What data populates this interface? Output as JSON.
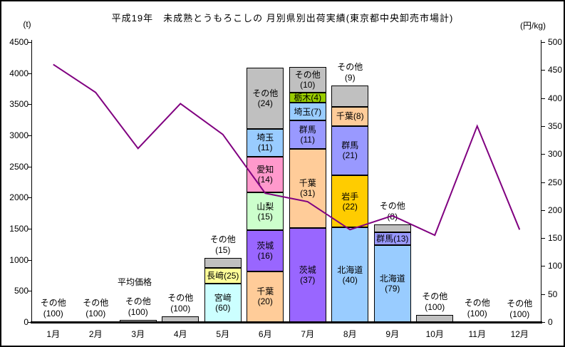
{
  "title": "平成19年　未成熟とうもろこしの 月別県別出荷実績(東京都中央卸売市場計)",
  "colors": {
    "sonota": "#C0C0C0",
    "chiba": "#FFCC99",
    "ibaraki": "#9966FF",
    "yamanashi": "#CCFFCC",
    "aichi": "#FF99CC",
    "saitama": "#99CCFF",
    "gunma": "#9999FF",
    "tochigi": "#99CC00",
    "hokkaido": "#99CCFF",
    "iwate": "#FFCC00",
    "nagasaki": "#FFFF99",
    "miyazaki": "#CCFFFF",
    "price_line": "#800080",
    "axis": "#000000"
  },
  "chart_data": {
    "type": "stacked-bar+line",
    "categories": [
      "1月",
      "2月",
      "3月",
      "4月",
      "5月",
      "6月",
      "7月",
      "8月",
      "9月",
      "10月",
      "11月",
      "12月"
    ],
    "left_axis": {
      "unit": "(t)",
      "min": 0,
      "max": 4500,
      "step": 500,
      "tick_labels": [
        "0",
        "500",
        "1000",
        "1500",
        "2000",
        "2500",
        "3000",
        "3500",
        "4000",
        "4500"
      ]
    },
    "right_axis": {
      "unit": "(円/kg)",
      "min": 0,
      "max": 500,
      "step": 50,
      "tick_labels": [
        "0",
        "50",
        "100",
        "150",
        "200",
        "250",
        "300",
        "350",
        "400",
        "450",
        "500"
      ]
    },
    "months": [
      {
        "total_t": 10,
        "outside": [
          "その他",
          "(100)"
        ],
        "segments": [
          {
            "name": "その他",
            "pct": 100,
            "color": "sonota",
            "label": "none"
          }
        ]
      },
      {
        "total_t": 15,
        "outside": [
          "その他",
          "(100)"
        ],
        "segments": [
          {
            "name": "その他",
            "pct": 100,
            "color": "sonota",
            "label": "none"
          }
        ]
      },
      {
        "total_t": 40,
        "outside": [
          "その他",
          "(100)"
        ],
        "segments": [
          {
            "name": "その他",
            "pct": 100,
            "color": "sonota",
            "label": "none"
          }
        ]
      },
      {
        "total_t": 95,
        "outside": [
          "その他",
          "(100)"
        ],
        "segments": [
          {
            "name": "その他",
            "pct": 100,
            "color": "sonota",
            "label": "none"
          }
        ]
      },
      {
        "total_t": 1030,
        "outside": [
          "その他",
          "(15)"
        ],
        "segments": [
          {
            "name": "宮﨑",
            "pct": 60,
            "color": "miyazaki",
            "label": "two"
          },
          {
            "name": "長﨑",
            "pct": 25,
            "color": "nagasaki",
            "label": "one"
          },
          {
            "name": "その他",
            "pct": 15,
            "color": "sonota",
            "label": "none"
          }
        ]
      },
      {
        "total_t": 4090,
        "segments": [
          {
            "name": "千葉",
            "pct": 20,
            "color": "chiba",
            "label": "two"
          },
          {
            "name": "茨城",
            "pct": 16,
            "color": "ibaraki",
            "label": "two"
          },
          {
            "name": "山梨",
            "pct": 15,
            "color": "yamanashi",
            "label": "two"
          },
          {
            "name": "愛知",
            "pct": 14,
            "color": "aichi",
            "label": "two"
          },
          {
            "name": "埼玉",
            "pct": 11,
            "color": "saitama",
            "label": "two"
          },
          {
            "name": "その他",
            "pct": 24,
            "color": "sonota",
            "label": "two"
          }
        ]
      },
      {
        "total_t": 4100,
        "segments": [
          {
            "name": "茨城",
            "pct": 37,
            "color": "ibaraki",
            "label": "two"
          },
          {
            "name": "千葉",
            "pct": 31,
            "color": "chiba",
            "label": "two"
          },
          {
            "name": "群馬",
            "pct": 11,
            "color": "gunma",
            "label": "two"
          },
          {
            "name": "埼玉",
            "pct": 7,
            "color": "saitama",
            "label": "one"
          },
          {
            "name": "栃木",
            "pct": 4,
            "color": "tochigi",
            "label": "one"
          },
          {
            "name": "その他",
            "pct": 10,
            "color": "sonota",
            "label": "two"
          }
        ]
      },
      {
        "total_t": 3800,
        "outside": [
          "その他",
          "(9)"
        ],
        "segments": [
          {
            "name": "北海道",
            "pct": 40,
            "color": "hokkaido",
            "label": "two"
          },
          {
            "name": "岩手",
            "pct": 22,
            "color": "iwate",
            "label": "two"
          },
          {
            "name": "群馬",
            "pct": 21,
            "color": "gunma",
            "label": "two"
          },
          {
            "name": "千葉",
            "pct": 8,
            "color": "chiba",
            "label": "one"
          },
          {
            "name": "その他",
            "pct": 9,
            "color": "sonota",
            "label": "none"
          }
        ]
      },
      {
        "total_t": 1570,
        "outside": [
          "その他",
          "(8)"
        ],
        "segments": [
          {
            "name": "北海道",
            "pct": 79,
            "color": "hokkaido",
            "label": "two"
          },
          {
            "name": "群馬",
            "pct": 13,
            "color": "gunma",
            "label": "one"
          },
          {
            "name": "その他",
            "pct": 8,
            "color": "sonota",
            "label": "none"
          }
        ]
      },
      {
        "total_t": 110,
        "outside": [
          "その他",
          "(100)"
        ],
        "segments": [
          {
            "name": "その他",
            "pct": 100,
            "color": "sonota",
            "label": "none"
          }
        ]
      },
      {
        "total_t": 10,
        "outside": [
          "その他",
          "(100)"
        ],
        "segments": [
          {
            "name": "その他",
            "pct": 100,
            "color": "sonota",
            "label": "none"
          }
        ]
      },
      {
        "total_t": 5,
        "outside": [
          "その他",
          "(100)"
        ],
        "segments": [
          {
            "name": "その他",
            "pct": 100,
            "color": "sonota",
            "label": "none"
          }
        ]
      }
    ],
    "price_line": {
      "name": "平均価格",
      "unit": "円/kg",
      "values": [
        460,
        410,
        310,
        390,
        335,
        230,
        215,
        165,
        190,
        155,
        350,
        165
      ]
    }
  }
}
